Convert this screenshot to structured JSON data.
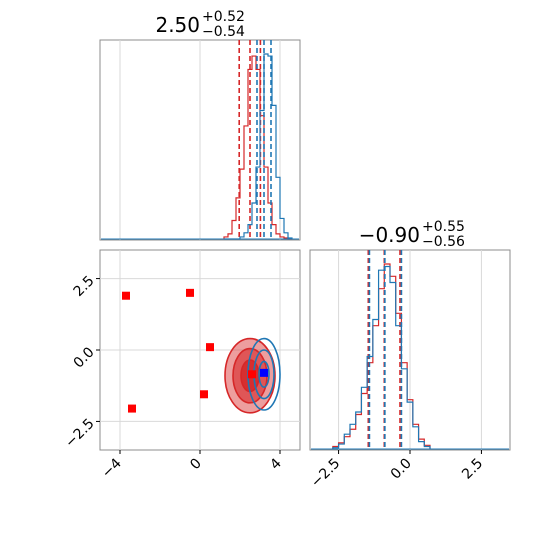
{
  "chart_data": [
    {
      "type": "histogram",
      "panel": "marginal-x",
      "title": {
        "value": "2.50",
        "upper": "+0.52",
        "lower": "−0.54"
      },
      "xlim": [
        -5,
        5
      ],
      "grid": true,
      "bins": [
        1.2,
        1.4,
        1.6,
        1.8,
        2.0,
        2.2,
        2.4,
        2.6,
        2.8,
        3.0,
        3.2,
        3.4,
        3.6,
        3.8,
        4.0,
        4.2,
        4.4,
        4.6
      ],
      "series": [
        {
          "color": "#d62728",
          "counts": [
            2,
            5,
            18,
            40,
            68,
            110,
            165,
            178,
            165,
            120,
            70,
            35,
            14,
            5,
            2,
            1,
            0
          ],
          "quantile_lines": [
            1.96,
            2.5,
            3.02
          ]
        },
        {
          "color": "#1f77b4",
          "counts": [
            0,
            0,
            0,
            0,
            2,
            6,
            14,
            35,
            70,
            125,
            180,
            178,
            130,
            60,
            20,
            6,
            1
          ],
          "quantile_lines": [
            2.85,
            3.2,
            3.55
          ]
        }
      ]
    },
    {
      "type": "histogram",
      "panel": "marginal-y",
      "title": {
        "value": "−0.90",
        "upper": "+0.55",
        "lower": "−0.56"
      },
      "xlim": [
        -3.5,
        3.5
      ],
      "xticks": [
        "−2.5",
        "0.0",
        "2.5"
      ],
      "grid": true,
      "bins": [
        -2.7,
        -2.5,
        -2.3,
        -2.1,
        -1.9,
        -1.7,
        -1.5,
        -1.3,
        -1.1,
        -0.9,
        -0.7,
        -0.5,
        -0.3,
        -0.1,
        0.1,
        0.3,
        0.5,
        0.7
      ],
      "series": [
        {
          "color": "#d62728",
          "counts": [
            2,
            5,
            10,
            16,
            28,
            45,
            70,
            100,
            130,
            150,
            140,
            110,
            70,
            40,
            20,
            8,
            3
          ],
          "quantile_lines": [
            -1.46,
            -0.9,
            -0.35
          ]
        },
        {
          "color": "#1f77b4",
          "counts": [
            1,
            4,
            12,
            20,
            30,
            50,
            75,
            105,
            145,
            148,
            135,
            100,
            65,
            38,
            18,
            6,
            2
          ],
          "quantile_lines": [
            -1.42,
            -0.88,
            -0.3
          ]
        }
      ]
    },
    {
      "type": "scatter",
      "panel": "joint",
      "xlim": [
        -5,
        5
      ],
      "ylim": [
        -3.5,
        3.5
      ],
      "xticks": [
        "−4",
        "0",
        "4"
      ],
      "yticks": [
        "−2.5",
        "0.0",
        "2.5"
      ],
      "grid": true,
      "markers": [
        {
          "x": -3.7,
          "y": 1.9,
          "color": "#ff0000"
        },
        {
          "x": -0.5,
          "y": 2.0,
          "color": "#ff0000"
        },
        {
          "x": 0.5,
          "y": 0.1,
          "color": "#ff0000"
        },
        {
          "x": 0.2,
          "y": -1.55,
          "color": "#ff0000"
        },
        {
          "x": -3.4,
          "y": -2.05,
          "color": "#ff0000"
        },
        {
          "x": 2.6,
          "y": -0.85,
          "color": "#ff0000"
        },
        {
          "x": 3.2,
          "y": -0.8,
          "color": "#0000ff"
        }
      ],
      "contours": [
        {
          "color": "#d62728",
          "center": [
            2.5,
            -0.9
          ],
          "levels": [
            {
              "rx": 1.25,
              "ry": 1.3,
              "opacity": 0.45
            },
            {
              "rx": 0.85,
              "ry": 0.95,
              "opacity": 0.6
            },
            {
              "rx": 0.45,
              "ry": 0.55,
              "opacity": 0.85
            }
          ]
        },
        {
          "color": "#1f77b4",
          "center": [
            3.2,
            -0.85
          ],
          "levels": [
            {
              "rx": 0.8,
              "ry": 1.25
            },
            {
              "rx": 0.5,
              "ry": 0.85
            },
            {
              "rx": 0.25,
              "ry": 0.45
            }
          ]
        }
      ]
    }
  ]
}
